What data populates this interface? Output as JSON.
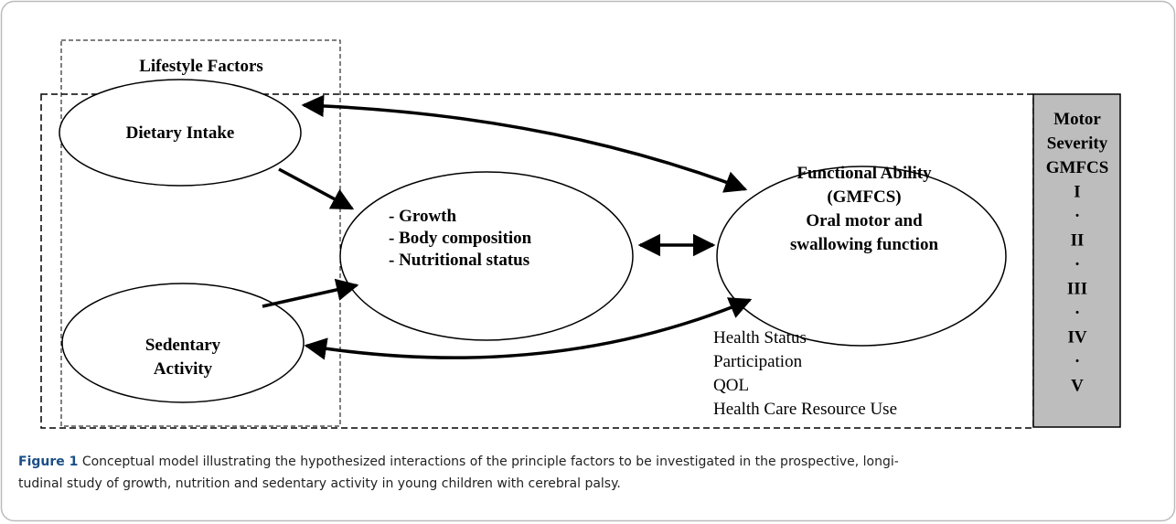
{
  "lifestyle_box": {
    "title": "Lifestyle Factors"
  },
  "nodes": [
    {
      "lines": [
        "Dietary Intake"
      ]
    },
    {
      "lines": [
        "Sedentary",
        "Activity"
      ]
    },
    {
      "lines": [
        "- Growth",
        "- Body composition",
        "- Nutritional status"
      ]
    },
    {
      "lines": [
        "Functional Ability",
        "(GMFCS)",
        "Oral motor and",
        "swallowing function"
      ]
    }
  ],
  "outcomes": [
    "Health Status",
    "Participation",
    "QOL",
    "Health Care Resource Use"
  ],
  "motor_severity": [
    "Motor",
    "Severity",
    "GMFCS",
    "I",
    "·",
    "II",
    "·",
    "III",
    "·",
    "IV",
    "·",
    "V"
  ],
  "caption": {
    "label": "Figure 1",
    "lines": [
      "Conceptual model illustrating the hypothesized interactions of the principle factors to be investigated in the prospective, longi-",
      "tudinal study of growth, nutrition and sedentary activity in young children with cerebral palsy."
    ]
  }
}
